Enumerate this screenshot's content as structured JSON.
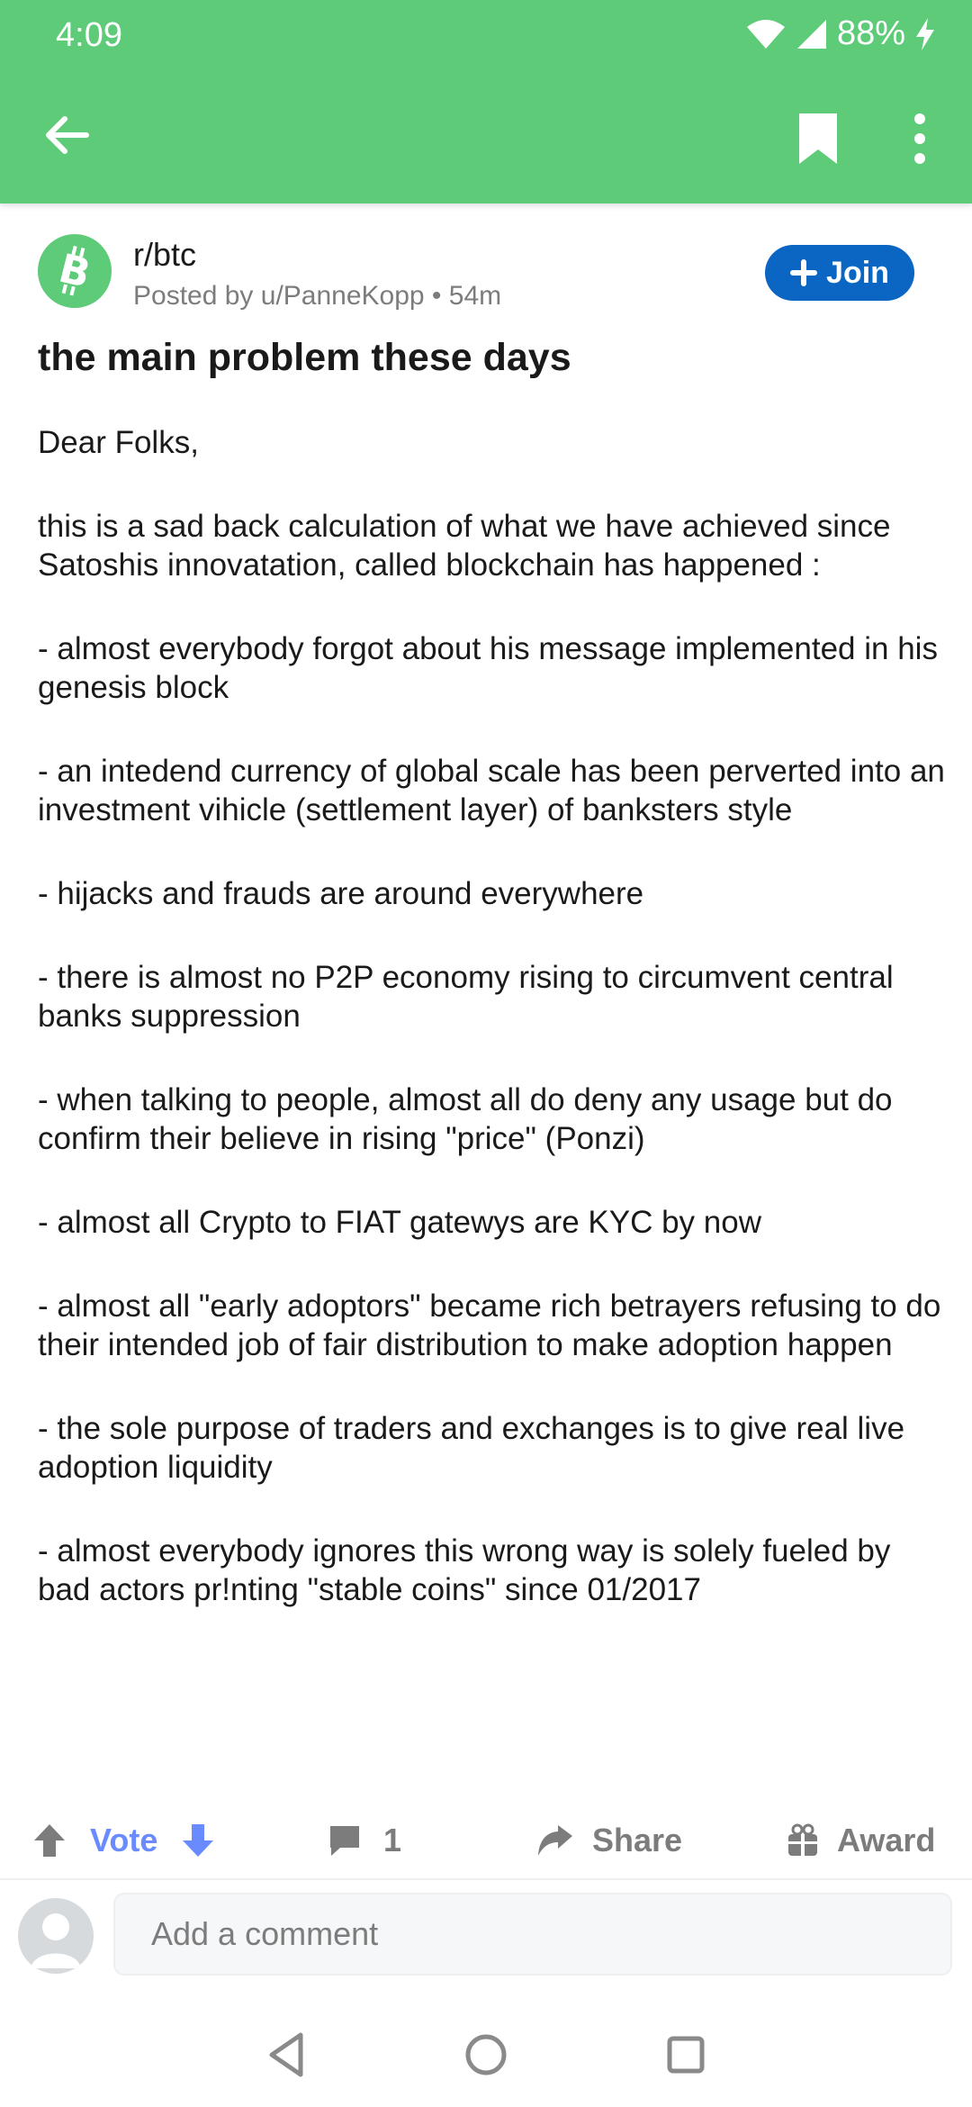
{
  "status_bar": {
    "time": "4:09",
    "battery": "88%"
  },
  "app_bar": {
    "back_icon": "arrow-left-icon",
    "bookmark_icon": "bookmark-icon",
    "more_icon": "more-vertical-icon",
    "color": "#5ecb79"
  },
  "post": {
    "subreddit": "r/btc",
    "meta": "Posted by u/PanneKopp • 54m",
    "join_label": "Join",
    "title": "the main problem these days",
    "body": [
      "Dear Folks,",
      "this is a sad back calculation of what we have achieved since Satoshis innovatation, called blockchain has happened :",
      "- almost everybody forgot about his message implemented in his genesis block",
      "- an intedend currency of global scale has been perverted into an investment vihicle (settlement layer) of banksters style",
      "- hijacks and frauds are around everywhere",
      "- there is almost no P2P economy rising to circumvent central banks suppression",
      "- when talking to people, almost all do deny any usage but do confirm their believe in rising \"price\" (Ponzi)",
      "- almost all Crypto to FIAT gatewys are KYC by now",
      "- almost all \"early adoptors\" became rich betrayers refusing to do their intended job of fair distribution to make adoption happen",
      "- the sole purpose of traders and exchanges is to give real live adoption liquidity",
      "- almost everybody ignores this wrong way is solely fueled by bad actors pr!nting \"stable coins\" since 01/2017"
    ]
  },
  "actions": {
    "vote_label": "Vote",
    "comment_count": "1",
    "share_label": "Share",
    "award_label": "Award"
  },
  "comment_bar": {
    "placeholder": "Add a comment"
  },
  "colors": {
    "accent_green": "#5ecb79",
    "join_blue": "#0a66c2",
    "vote_blue": "#6a8bff"
  }
}
